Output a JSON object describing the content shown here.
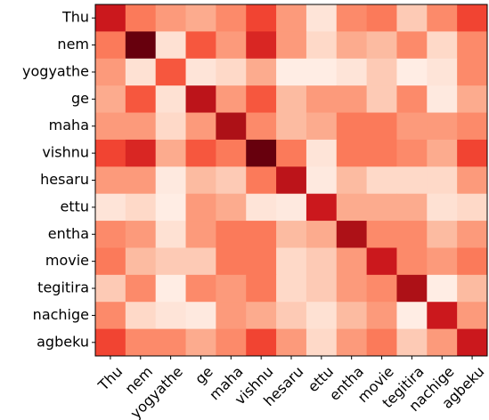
{
  "chart_data": {
    "type": "heatmap",
    "x_categories": [
      "Thu",
      "nem",
      "yogyathe",
      "ge",
      "maha",
      "vishnu",
      "hesaru",
      "ettu",
      "entha",
      "movie",
      "tegitira",
      "nachige",
      "agbeku"
    ],
    "y_categories": [
      "Thu",
      "nem",
      "yogyathe",
      "ge",
      "maha",
      "vishnu",
      "hesaru",
      "ettu",
      "entha",
      "movie",
      "tegitira",
      "nachige",
      "agbeku"
    ],
    "values": [
      [
        0.75,
        0.45,
        0.35,
        0.3,
        0.4,
        0.6,
        0.35,
        0.1,
        0.4,
        0.45,
        0.2,
        0.4,
        0.6
      ],
      [
        0.45,
        1.0,
        0.12,
        0.55,
        0.35,
        0.7,
        0.35,
        0.15,
        0.3,
        0.25,
        0.4,
        0.15,
        0.4
      ],
      [
        0.35,
        0.12,
        0.55,
        0.1,
        0.15,
        0.3,
        0.05,
        0.05,
        0.1,
        0.2,
        0.05,
        0.1,
        0.4
      ],
      [
        0.3,
        0.55,
        0.12,
        0.8,
        0.35,
        0.55,
        0.25,
        0.35,
        0.35,
        0.2,
        0.4,
        0.07,
        0.3
      ],
      [
        0.35,
        0.35,
        0.15,
        0.35,
        0.85,
        0.4,
        0.25,
        0.3,
        0.45,
        0.45,
        0.35,
        0.35,
        0.4
      ],
      [
        0.6,
        0.7,
        0.3,
        0.55,
        0.45,
        1.0,
        0.45,
        0.1,
        0.45,
        0.45,
        0.4,
        0.3,
        0.6
      ],
      [
        0.35,
        0.35,
        0.07,
        0.25,
        0.2,
        0.45,
        0.8,
        0.07,
        0.25,
        0.15,
        0.15,
        0.15,
        0.35
      ],
      [
        0.1,
        0.15,
        0.05,
        0.35,
        0.3,
        0.1,
        0.07,
        0.75,
        0.3,
        0.3,
        0.3,
        0.12,
        0.15
      ],
      [
        0.4,
        0.35,
        0.12,
        0.35,
        0.45,
        0.45,
        0.25,
        0.3,
        0.85,
        0.4,
        0.4,
        0.25,
        0.35
      ],
      [
        0.45,
        0.25,
        0.2,
        0.2,
        0.45,
        0.45,
        0.15,
        0.2,
        0.35,
        0.75,
        0.4,
        0.35,
        0.45
      ],
      [
        0.2,
        0.4,
        0.05,
        0.4,
        0.35,
        0.45,
        0.15,
        0.2,
        0.35,
        0.4,
        0.85,
        0.05,
        0.25
      ],
      [
        0.4,
        0.15,
        0.1,
        0.07,
        0.35,
        0.3,
        0.2,
        0.12,
        0.25,
        0.35,
        0.05,
        0.75,
        0.35
      ],
      [
        0.6,
        0.4,
        0.4,
        0.3,
        0.4,
        0.6,
        0.35,
        0.15,
        0.35,
        0.45,
        0.2,
        0.35,
        0.75
      ]
    ],
    "zlim": [
      0,
      1
    ],
    "colormap": "Reds",
    "colormap_colors": [
      "#fff5f0",
      "#fee0d2",
      "#fcbba1",
      "#fc9272",
      "#fb6a4a",
      "#ef3b2c",
      "#cb181d",
      "#a50f15",
      "#67000d"
    ]
  }
}
